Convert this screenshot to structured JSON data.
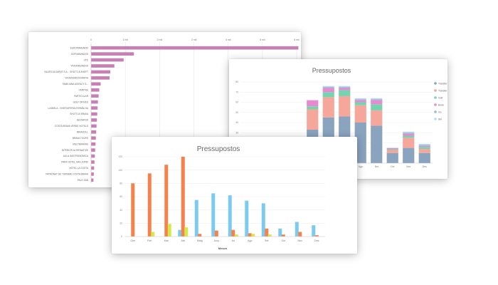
{
  "colors": {
    "hbar": "#c77fb4",
    "hbar_grid": "#e6e6e6",
    "orange": "#f7814d",
    "light_blue": "#7dcaf0",
    "lime": "#d5e84a",
    "slate": "#8aa3bf",
    "salmon": "#f6a79b",
    "teal": "#76d3b0",
    "pink": "#e78ad0",
    "steel": "#9ab6d4",
    "sky": "#b6daf2"
  },
  "chart_data": [
    {
      "type": "bar",
      "orientation": "horizontal",
      "title": "",
      "xlabel": "",
      "ylabel": "",
      "xlim": [
        0,
        6
      ],
      "x_tick_labels": [
        "0",
        "1 mil",
        "2 mil",
        "3 mil",
        "4 mil",
        "5 mil",
        "6 mil"
      ],
      "grid": true,
      "categories": [
        "EUROPAMUNDO",
        "ZATRAMUNDOS",
        "UTE",
        "VIVEINMUNDOS",
        "VIAJES ALGARVE S.A. - SHUTTLE AHEFT",
        "VIAJEMUNDOGRAFIA",
        "FAMILIANA AGENCY S...",
        "VERITAS",
        "PARTICULAR",
        "GOLF DRIVES",
        "LA BIRLA - VIVEFIAFERIA ESPAÑA SA",
        "SHUTTLE BRAVA",
        "BIZZARUS",
        "COSTA BRAVA VERDE HOTELS",
        "MIRADOLL",
        "BRAVA TOURS",
        "MULTIBRAVAS",
        "INTERIOR ALTERNATIVE",
        "AULA GASTRONOMICA",
        "PARK HOTEL SAN JORDI",
        "HOTEL LA COSTA",
        "PATRONAT DE TURISME COSTA BRAVA",
        "PALS SAN"
      ],
      "values": [
        6.05,
        1.25,
        0.95,
        0.68,
        0.56,
        0.54,
        0.28,
        0.24,
        0.22,
        0.2,
        0.19,
        0.18,
        0.17,
        0.16,
        0.15,
        0.14,
        0.13,
        0.12,
        0.11,
        0.1,
        0.09,
        0.08,
        0.07
      ]
    },
    {
      "type": "bar",
      "stacked": true,
      "title": "Pressupostos",
      "xlabel": "Mesos",
      "ylabel": "",
      "ylim": [
        0,
        80
      ],
      "y_ticks": [
        0,
        10,
        20,
        30,
        40,
        50,
        60,
        70,
        80
      ],
      "grid": true,
      "legend_position": "right",
      "categories": [
        "Gen",
        "Feb",
        "Mar",
        "Abr",
        "Maig",
        "Juny",
        "Jul",
        "Ago",
        "Set",
        "Oct",
        "Nov",
        "Des"
      ],
      "series": [
        {
          "name": "Transfer andanàdat",
          "color_key": "slate",
          "values": [
            1,
            1,
            1,
            5,
            33,
            45,
            46,
            40,
            37,
            10,
            15,
            10
          ]
        },
        {
          "name": "Transfer luxe",
          "color_key": "salmon",
          "values": [
            0,
            0,
            1,
            2,
            20,
            20,
            20,
            17,
            15,
            3,
            10,
            4
          ]
        },
        {
          "name": "Golf",
          "color_key": "teal",
          "values": [
            0,
            0,
            0,
            0,
            3,
            5,
            6,
            3,
            6,
            1,
            2,
            2
          ]
        },
        {
          "name": "Bodo",
          "color_key": "pink",
          "values": [
            0,
            0,
            0,
            0,
            6,
            4,
            2,
            2,
            4,
            1,
            2,
            1
          ]
        },
        {
          "name": "Go",
          "color_key": "steel",
          "values": [
            0,
            0,
            0,
            0,
            0,
            1,
            1,
            1,
            1,
            0,
            1,
            1
          ]
        },
        {
          "name": "Ski",
          "color_key": "sky",
          "values": [
            0,
            0,
            0,
            0,
            0,
            1,
            1,
            1,
            1,
            0,
            1,
            1
          ]
        }
      ]
    },
    {
      "type": "bar",
      "title": "Pressupostos",
      "xlabel": "Mesos",
      "ylabel": "",
      "ylim": [
        0,
        120
      ],
      "y_ticks": [
        0,
        20,
        40,
        60,
        80,
        100,
        120
      ],
      "grid": true,
      "categories": [
        "Gen",
        "Feb",
        "Mar",
        "Abr",
        "Maig",
        "Juny",
        "Jul",
        "Ago",
        "Set",
        "Oct",
        "Nov",
        "Des"
      ],
      "series": [
        {
          "color_key": "light_blue",
          "values": [
            0,
            0,
            0,
            10,
            55,
            65,
            62,
            54,
            50,
            12,
            22,
            17
          ]
        },
        {
          "color_key": "orange",
          "values": [
            80,
            95,
            108,
            120,
            4,
            9,
            10,
            5,
            12,
            3,
            7,
            2
          ]
        },
        {
          "color_key": "lime",
          "values": [
            0,
            7,
            19,
            14,
            0,
            0,
            3,
            4,
            3,
            0,
            0,
            0
          ]
        }
      ]
    }
  ]
}
